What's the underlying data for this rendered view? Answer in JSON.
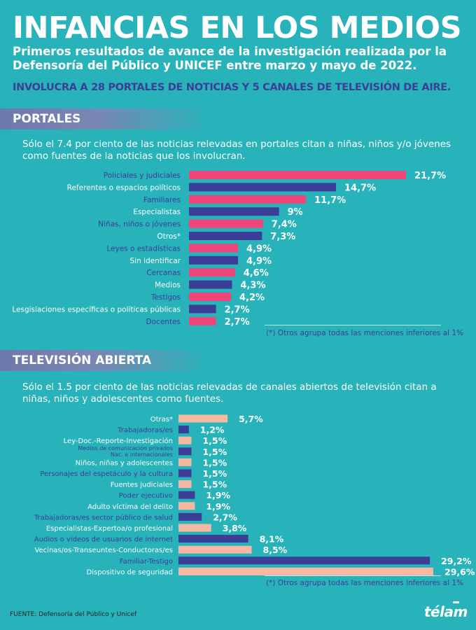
{
  "header": {
    "title": "INFANCIAS EN LOS MEDIOS",
    "subtitle": "Primeros resultados de avance de la investigación realizada por la Defensoría del Público y UNICEF entre marzo y mayo de 2022.",
    "highlight": "INVOLUCRA A 28 PORTALES DE NOTICIAS Y 5 CANALES DE TELEVISIÓN DE AIRE."
  },
  "colors": {
    "background": "#27b3b9",
    "pink": "#f0457a",
    "navy": "#3c3d96",
    "salmon": "#f7b8a2",
    "band": "#7a86b3"
  },
  "portales": {
    "section_title": "PORTALES",
    "intro": "Sólo el 7.4 por ciento de las noticias relevadas en portales citan a niñas, niños y/o jóvenes como fuentes de la noticias que los involucran.",
    "footnote": "(*) Otros agrupa todas las menciones inferiores al 1%"
  },
  "television": {
    "section_title": "TELEVISIÓN ABIERTA",
    "intro": "Sólo el 1.5 por ciento de las noticias relevadas de canales abiertos de televisión citan a niñas, niños y adolescentes como fuentes.",
    "footnote": "(*) Otros agrupa todas las menciones inferiores al 1%"
  },
  "footer": {
    "source": "FUENTE: Defensoría del Público y Unicef",
    "logo": "télam"
  },
  "chart_data": [
    {
      "type": "bar",
      "orientation": "horizontal",
      "categories": [
        "Policiales y judiciales",
        "Referentes o espacios políticos",
        "Familiares",
        "Especialistas",
        "Niñas, niños o jóvenes",
        "Otros*",
        "Leyes o estadísticas",
        "Sin identificar",
        "Cercanas",
        "Medios",
        "Testigos",
        "Lesgislaciones específicas o políticas públicas",
        "Docentes"
      ],
      "values": [
        21.7,
        14.7,
        11.7,
        9,
        7.4,
        7.3,
        4.9,
        4.9,
        4.6,
        4.3,
        4.2,
        2.7,
        2.7
      ],
      "value_labels": [
        "21,7%",
        "14,7%",
        "11,7%",
        "9%",
        "7,4%",
        "7,3%",
        "4,9%",
        "4,9%",
        "4,6%",
        "4,3%",
        "4,2%",
        "2,7%",
        "2,7%"
      ],
      "bar_colors": [
        "#f0457a",
        "#3c3d96",
        "#f0457a",
        "#3c3d96",
        "#f0457a",
        "#3c3d96",
        "#f0457a",
        "#3c3d96",
        "#f0457a",
        "#3c3d96",
        "#f0457a",
        "#3c3d96",
        "#f0457a"
      ],
      "label_colors": [
        "#3c3d96",
        "#ffffff",
        "#3c3d96",
        "#ffffff",
        "#3c3d96",
        "#ffffff",
        "#3c3d96",
        "#ffffff",
        "#3c3d96",
        "#ffffff",
        "#3c3d96",
        "#ffffff",
        "#3c3d96"
      ],
      "xlim": [
        0,
        21.7
      ],
      "grid": false
    },
    {
      "type": "bar",
      "orientation": "horizontal",
      "categories": [
        "Otras*",
        "Trabajadoras/es",
        "Ley-Doc.-Reporte-Investigación",
        "Medios de comunicación privados Nac. e internacionales",
        "Niños, niñas y adolescentes",
        "Personajes del espetáculo y la cultura",
        "Fuentes judiciales",
        "Poder ejecutivo",
        "Adulto víctima del delito",
        "Trabajadoras/es sector público de salud",
        "Especialistas-Expertoa/o profesional",
        "Audios o videos de usuarios de internet",
        "Vecinas/os-Transeuntes-Conductoras/es",
        "Familiar-Testigo",
        "Dispositivo de seguridad"
      ],
      "category_lines": [
        [
          "Otras*"
        ],
        [
          "Trabajadoras/es"
        ],
        [
          "Ley-Doc.-Reporte-Investigación"
        ],
        [
          "Medios de comunicación privados",
          "Nac. e internacionales"
        ],
        [
          "Niños, niñas y adolescentes"
        ],
        [
          "Personajes del espetáculo y la cultura"
        ],
        [
          "Fuentes judiciales"
        ],
        [
          "Poder ejecutivo"
        ],
        [
          "Adulto víctima del delito"
        ],
        [
          "Trabajadoras/es sector público de salud"
        ],
        [
          "Especialistas-Expertoa/o profesional"
        ],
        [
          "Audios o videos de usuarios de internet"
        ],
        [
          "Vecinas/os-Transeuntes-Conductoras/es"
        ],
        [
          "Familiar-Testigo"
        ],
        [
          "Dispositivo de seguridad"
        ]
      ],
      "values": [
        5.7,
        1.2,
        1.5,
        1.5,
        1.5,
        1.5,
        1.5,
        1.9,
        1.9,
        2.7,
        3.8,
        8.1,
        8.5,
        29.2,
        29.6
      ],
      "value_labels": [
        "5,7%",
        "1,2%",
        "1,5%",
        "1,5%",
        "1,5%",
        "1,5%",
        "1,5%",
        "1,9%",
        "1,9%",
        "2,7%",
        "3,8%",
        "8,1%",
        "8,5%",
        "29,2%",
        "29,6%"
      ],
      "bar_colors": [
        "#f7b8a2",
        "#3c3d96",
        "#f7b8a2",
        "#3c3d96",
        "#f7b8a2",
        "#3c3d96",
        "#f7b8a2",
        "#3c3d96",
        "#f7b8a2",
        "#3c3d96",
        "#f7b8a2",
        "#3c3d96",
        "#f7b8a2",
        "#3c3d96",
        "#f7b8a2"
      ],
      "label_colors": [
        "#ffffff",
        "#3c3d96",
        "#ffffff",
        "#3c3d96",
        "#ffffff",
        "#3c3d96",
        "#ffffff",
        "#3c3d96",
        "#ffffff",
        "#3c3d96",
        "#ffffff",
        "#3c3d96",
        "#ffffff",
        "#3c3d96",
        "#ffffff"
      ],
      "xlim": [
        0,
        29.6
      ],
      "grid": false
    }
  ]
}
